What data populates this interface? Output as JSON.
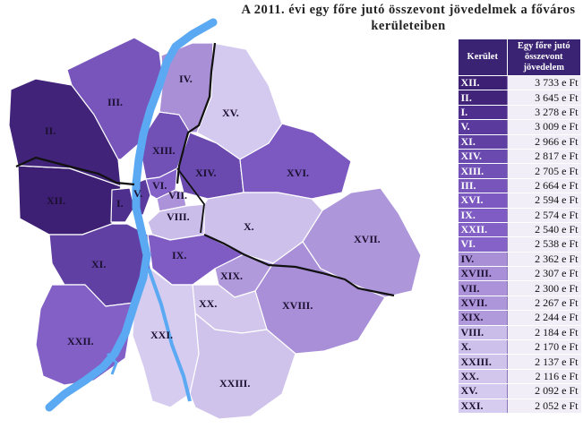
{
  "title": "A 2011. évi egy főre jutó összevont jövedelmek a főváros kerületeiben",
  "legend": {
    "col1_header": "Kerület",
    "col2_header": "Egy főre jutó összevont jövedelem",
    "rows": [
      {
        "district": "XII.",
        "value": "3 733 e Ft",
        "color": "#3d1f73"
      },
      {
        "district": "II.",
        "value": "3 645 e Ft",
        "color": "#41237a"
      },
      {
        "district": "I.",
        "value": "3 278 e Ft",
        "color": "#4f2f8e"
      },
      {
        "district": "V.",
        "value": "3 009 e Ft",
        "color": "#5a3a9c"
      },
      {
        "district": "XI.",
        "value": "2 966 e Ft",
        "color": "#6040a3"
      },
      {
        "district": "XIV.",
        "value": "2 817 e Ft",
        "color": "#6a4aae"
      },
      {
        "district": "XIII.",
        "value": "2 705 e Ft",
        "color": "#7251b6"
      },
      {
        "district": "III.",
        "value": "2 664 e Ft",
        "color": "#7755bb"
      },
      {
        "district": "XVI.",
        "value": "2 594 e Ft",
        "color": "#7b59c0"
      },
      {
        "district": "IX.",
        "value": "2 574 e Ft",
        "color": "#7e5cc3"
      },
      {
        "district": "XXII.",
        "value": "2 540 e Ft",
        "color": "#8260c6"
      },
      {
        "district": "VI.",
        "value": "2 538 e Ft",
        "color": "#8462c8"
      },
      {
        "district": "IV.",
        "value": "2 362 e Ft",
        "color": "#a88fd6"
      },
      {
        "district": "XVIII.",
        "value": "2 307 e Ft",
        "color": "#a98fd8"
      },
      {
        "district": "VII.",
        "value": "2 300 e Ft",
        "color": "#ab92d9"
      },
      {
        "district": "XVII.",
        "value": "2 267 e Ft",
        "color": "#ae96da"
      },
      {
        "district": "XIX.",
        "value": "2 244 e Ft",
        "color": "#b19adc"
      },
      {
        "district": "VIII.",
        "value": "2 184 e Ft",
        "color": "#cbbde9"
      },
      {
        "district": "X.",
        "value": "2 170 e Ft",
        "color": "#cdc0ea"
      },
      {
        "district": "XXIII.",
        "value": "2 137 e Ft",
        "color": "#d0c3eb"
      },
      {
        "district": "XX.",
        "value": "2 116 e Ft",
        "color": "#d2c6ec"
      },
      {
        "district": "XV.",
        "value": "2 092 e Ft",
        "color": "#d4c9ee"
      },
      {
        "district": "XXI.",
        "value": "2 052 e Ft",
        "color": "#d6ccef"
      }
    ]
  },
  "colors": {
    "river": "#5aa9f2",
    "header_bg": "#3a2372",
    "value_bg": "#f2eef8",
    "dark_label": "#ffffff",
    "light_label": "#1c1030"
  }
}
